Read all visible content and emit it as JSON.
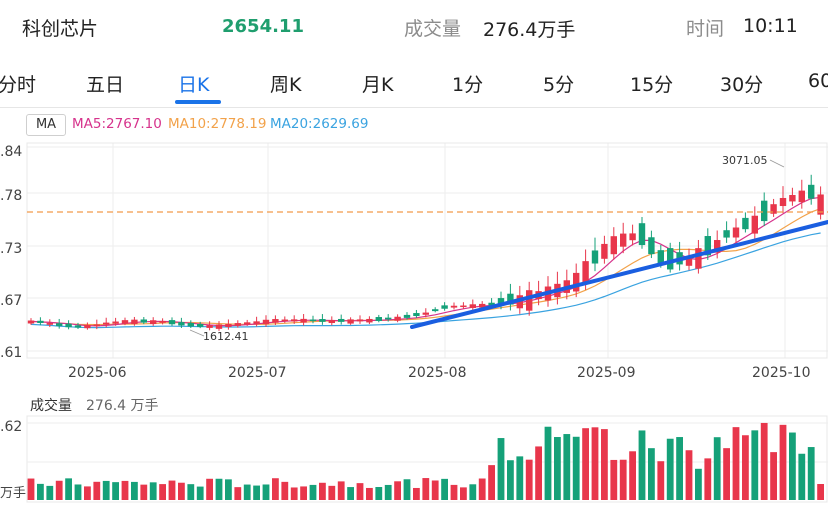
{
  "header": {
    "name": "科创芯片",
    "price": "2654.11",
    "volume_label": "成交量",
    "volume": "276.4万手",
    "time_label": "时间",
    "time": "10:11"
  },
  "tabs": [
    {
      "label": "分时",
      "active": false
    },
    {
      "label": "五日",
      "active": false
    },
    {
      "label": "日K",
      "active": true
    },
    {
      "label": "周K",
      "active": false
    },
    {
      "label": "月K",
      "active": false
    },
    {
      "label": "1分",
      "active": false
    },
    {
      "label": "5分",
      "active": false
    },
    {
      "label": "15分",
      "active": false
    },
    {
      "label": "30分",
      "active": false
    },
    {
      "label": "60",
      "active": false
    }
  ],
  "ma": {
    "label": "MA",
    "ma5": "MA5:2767.10",
    "ma10": "MA10:2778.19",
    "ma20": "MA20:2629.69"
  },
  "price_axis": [
    ".84",
    ".78",
    ".73",
    ".67",
    ".61"
  ],
  "date_axis": [
    "2025-06",
    "2025-07",
    "2025-08",
    "2025-09",
    "2025-10"
  ],
  "annotations": {
    "high": "3071.05",
    "low": "1612.41"
  },
  "volume_panel": {
    "label": "成交量",
    "value": "276.4 万手",
    "axis_top": ".62",
    "axis_bottom": "万手"
  },
  "colors": {
    "up": "#e8364b",
    "down": "#15a179",
    "accent": "#1a73e8",
    "ma5": "#d6338c",
    "ma10": "#f2a24a",
    "ma20": "#3aa3e0"
  },
  "chart_data": {
    "type": "candlestick",
    "note_levels": {
      "high": 3071.05,
      "low": 1612.41
    },
    "candles_count": 86,
    "volume_panel_count": 86
  }
}
